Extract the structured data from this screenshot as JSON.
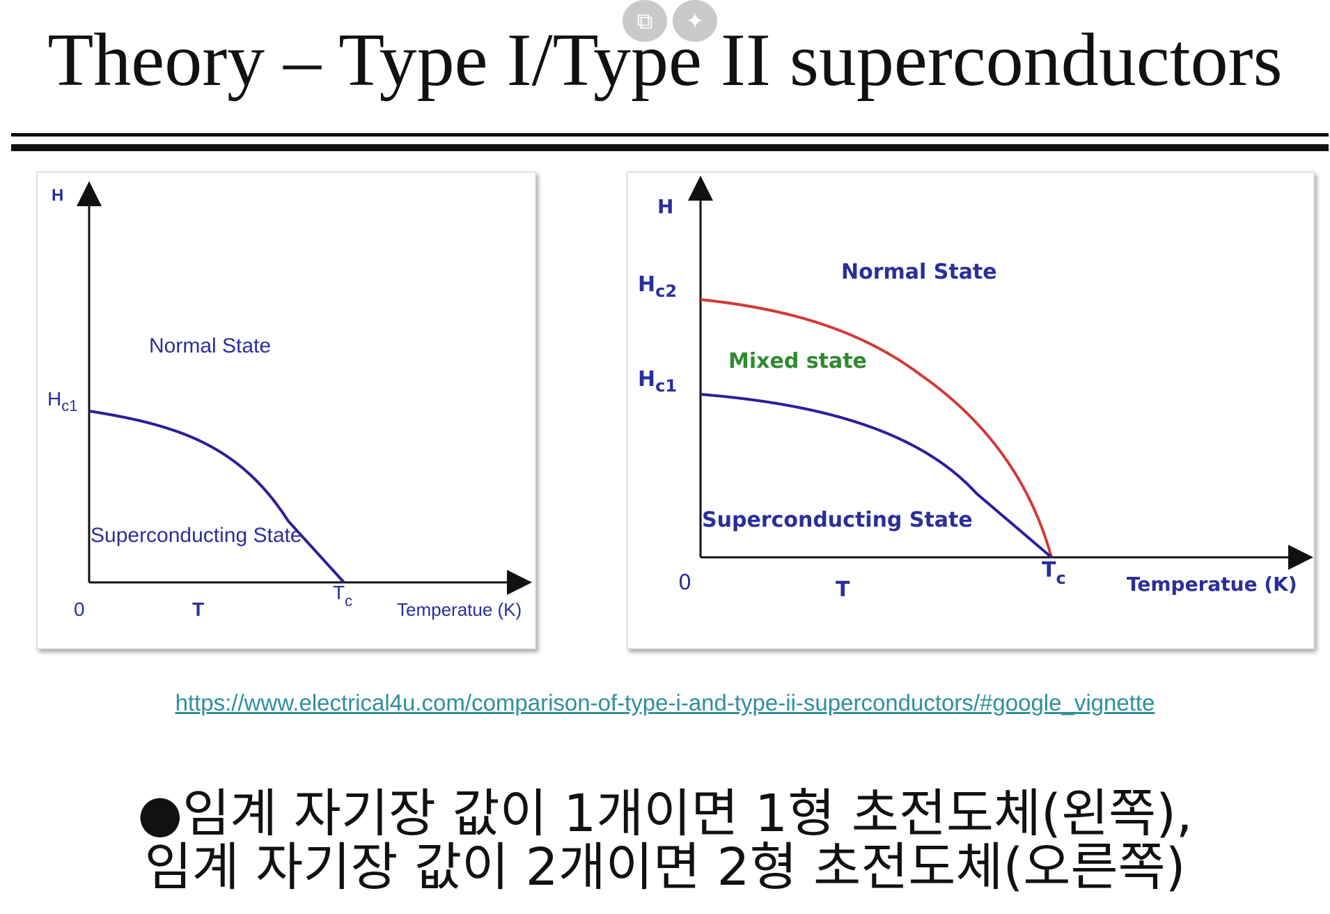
{
  "title": "Theory – Type I/Type II superconductors",
  "overlay_icons": [
    "open-external-icon",
    "sparkle-icon"
  ],
  "colors": {
    "curve_blue": "#2b1f9a",
    "curve_red": "#d23a36",
    "mixed_green": "#2f8a2f",
    "label_blue": "#2b2f9a"
  },
  "diagrams": {
    "type1": {
      "y_axis_label": "H",
      "hc1_main": "H",
      "hc1_sub": "c1",
      "normal_state": "Normal State",
      "superconducting_state": "Superconducting State",
      "origin": "0",
      "t_label": "T",
      "tc_main": "T",
      "tc_sub": "c",
      "x_axis_label": "Temperatue (K)"
    },
    "type2": {
      "y_axis_label": "H",
      "hc2_main": "H",
      "hc2_sub": "c2",
      "hc1_main": "H",
      "hc1_sub": "c1",
      "normal_state": "Normal State",
      "mixed_state": "Mixed state",
      "superconducting_state": "Superconducting State",
      "origin": "0",
      "t_label": "T",
      "tc_main": "T",
      "tc_sub": "c",
      "x_axis_label": "Temperatue (K)"
    }
  },
  "source_link": "https://www.electrical4u.com/comparison-of-type-i-and-type-ii-superconductors/#google_vignette",
  "note_line1": "●임계 자기장 값이 1개이면 1형 초전도체(왼쪽),",
  "note_line2": "임계 자기장 값이 2개이면 2형 초전도체(오른쪽)"
}
